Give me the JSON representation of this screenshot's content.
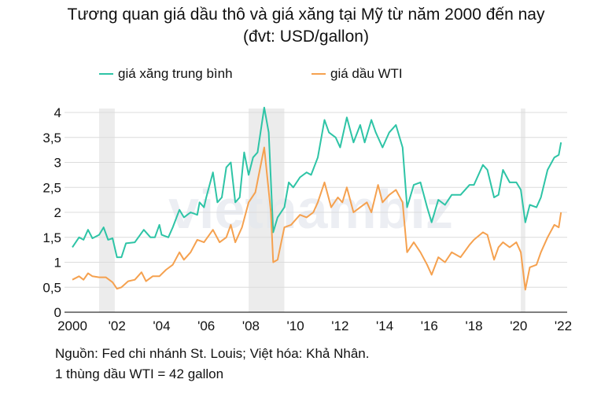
{
  "chart_data": {
    "type": "line",
    "title": "Tương quan giá dầu thô và giá xăng tại Mỹ từ năm 2000 đến nay",
    "subtitle": "(đvt: USD/gallon)",
    "xlabel": "",
    "ylabel": "",
    "xlim": [
      2000,
      2022
    ],
    "ylim": [
      0,
      4
    ],
    "grid": true,
    "legend_position": "top",
    "x_ticks": [
      {
        "v": 2000,
        "label": "2000"
      },
      {
        "v": 2002,
        "label": "'02"
      },
      {
        "v": 2004,
        "label": "'04"
      },
      {
        "v": 2006,
        "label": "'06"
      },
      {
        "v": 2008,
        "label": "'08"
      },
      {
        "v": 2010,
        "label": "'10"
      },
      {
        "v": 2012,
        "label": "'12"
      },
      {
        "v": 2014,
        "label": "'14"
      },
      {
        "v": 2016,
        "label": "'16"
      },
      {
        "v": 2018,
        "label": "'18"
      },
      {
        "v": 2020,
        "label": "'20"
      },
      {
        "v": 2022,
        "label": "'22"
      }
    ],
    "y_ticks": [
      {
        "v": 0,
        "label": "0"
      },
      {
        "v": 0.5,
        "label": "0,5"
      },
      {
        "v": 1,
        "label": "1"
      },
      {
        "v": 1.5,
        "label": "1,5"
      },
      {
        "v": 2,
        "label": "2"
      },
      {
        "v": 2.5,
        "label": "2,5"
      },
      {
        "v": 3,
        "label": "3"
      },
      {
        "v": 3.5,
        "label": "3,5"
      },
      {
        "v": 4,
        "label": "4"
      }
    ],
    "shaded_periods": [
      [
        2001.2,
        2001.9
      ],
      [
        2007.9,
        2009.5
      ],
      [
        2020.1,
        2020.3
      ]
    ],
    "series": [
      {
        "name": "giá xăng trung bình",
        "color": "#2ec4a6",
        "x": [
          2000.0,
          2000.3,
          2000.5,
          2000.7,
          2000.9,
          2001.2,
          2001.4,
          2001.6,
          2001.8,
          2002.0,
          2002.2,
          2002.4,
          2002.8,
          2003.2,
          2003.5,
          2003.7,
          2003.9,
          2004.0,
          2004.3,
          2004.5,
          2004.8,
          2005.0,
          2005.3,
          2005.6,
          2005.7,
          2005.9,
          2006.0,
          2006.3,
          2006.5,
          2006.7,
          2006.9,
          2007.1,
          2007.3,
          2007.5,
          2007.7,
          2007.9,
          2008.1,
          2008.3,
          2008.6,
          2008.8,
          2009.0,
          2009.2,
          2009.5,
          2009.7,
          2009.9,
          2010.2,
          2010.5,
          2010.7,
          2011.0,
          2011.3,
          2011.5,
          2011.8,
          2012.0,
          2012.3,
          2012.6,
          2012.9,
          2013.1,
          2013.4,
          2013.6,
          2013.9,
          2014.2,
          2014.5,
          2014.8,
          2015.0,
          2015.3,
          2015.6,
          2015.9,
          2016.1,
          2016.4,
          2016.7,
          2017.0,
          2017.4,
          2017.8,
          2018.0,
          2018.4,
          2018.6,
          2018.9,
          2019.1,
          2019.3,
          2019.6,
          2019.9,
          2020.1,
          2020.3,
          2020.5,
          2020.8,
          2021.0,
          2021.3,
          2021.6,
          2021.8,
          2021.9
        ],
        "y": [
          1.3,
          1.5,
          1.45,
          1.65,
          1.48,
          1.55,
          1.7,
          1.45,
          1.48,
          1.1,
          1.1,
          1.38,
          1.4,
          1.65,
          1.5,
          1.5,
          1.75,
          1.55,
          1.5,
          1.7,
          2.05,
          1.9,
          2.0,
          1.95,
          2.2,
          2.1,
          2.3,
          2.8,
          2.2,
          2.3,
          2.9,
          3.0,
          2.2,
          2.3,
          3.2,
          2.75,
          3.1,
          3.2,
          4.1,
          3.6,
          1.6,
          1.9,
          2.1,
          2.6,
          2.5,
          2.7,
          2.8,
          2.75,
          3.1,
          3.85,
          3.6,
          3.5,
          3.3,
          3.9,
          3.4,
          3.75,
          3.4,
          3.85,
          3.6,
          3.3,
          3.6,
          3.75,
          3.3,
          2.1,
          2.55,
          2.6,
          2.1,
          1.8,
          2.25,
          2.15,
          2.35,
          2.35,
          2.55,
          2.55,
          2.95,
          2.85,
          2.3,
          2.35,
          2.85,
          2.6,
          2.6,
          2.45,
          1.8,
          2.15,
          2.1,
          2.3,
          2.85,
          3.1,
          3.15,
          3.4
        ]
      },
      {
        "name": "giá dầu WTI",
        "color": "#f5a14f",
        "x": [
          2000.0,
          2000.3,
          2000.5,
          2000.7,
          2000.9,
          2001.2,
          2001.5,
          2001.8,
          2002.0,
          2002.2,
          2002.5,
          2002.8,
          2003.1,
          2003.3,
          2003.6,
          2003.9,
          2004.2,
          2004.5,
          2004.8,
          2005.0,
          2005.3,
          2005.6,
          2005.9,
          2006.3,
          2006.6,
          2006.9,
          2007.1,
          2007.3,
          2007.6,
          2007.9,
          2008.2,
          2008.6,
          2008.9,
          2009.0,
          2009.2,
          2009.5,
          2009.8,
          2010.2,
          2010.5,
          2010.8,
          2011.0,
          2011.3,
          2011.6,
          2011.9,
          2012.1,
          2012.3,
          2012.6,
          2012.9,
          2013.2,
          2013.4,
          2013.7,
          2013.9,
          2014.2,
          2014.5,
          2014.8,
          2015.0,
          2015.3,
          2015.6,
          2015.9,
          2016.1,
          2016.4,
          2016.7,
          2017.0,
          2017.4,
          2017.8,
          2018.0,
          2018.4,
          2018.6,
          2018.9,
          2019.1,
          2019.3,
          2019.6,
          2019.9,
          2020.1,
          2020.3,
          2020.5,
          2020.8,
          2021.0,
          2021.3,
          2021.6,
          2021.8,
          2021.9
        ],
        "y": [
          0.65,
          0.72,
          0.65,
          0.78,
          0.72,
          0.7,
          0.7,
          0.6,
          0.47,
          0.5,
          0.62,
          0.65,
          0.8,
          0.62,
          0.72,
          0.72,
          0.85,
          0.95,
          1.2,
          1.05,
          1.2,
          1.45,
          1.4,
          1.65,
          1.4,
          1.5,
          1.75,
          1.4,
          1.7,
          2.2,
          2.4,
          3.3,
          2.0,
          1.0,
          1.05,
          1.7,
          1.75,
          1.95,
          1.9,
          2.0,
          2.2,
          2.6,
          2.1,
          2.3,
          2.2,
          2.5,
          2.0,
          2.1,
          2.2,
          2.0,
          2.55,
          2.2,
          2.35,
          2.45,
          2.2,
          1.2,
          1.4,
          1.2,
          0.95,
          0.75,
          1.1,
          1.0,
          1.2,
          1.1,
          1.35,
          1.45,
          1.6,
          1.55,
          1.05,
          1.3,
          1.4,
          1.3,
          1.4,
          1.2,
          0.45,
          0.9,
          0.95,
          1.2,
          1.5,
          1.75,
          1.7,
          2.0
        ]
      }
    ]
  },
  "notes": {
    "source": "Nguồn: Fed chi nhánh St. Louis; Việt hóa: Khả Nhân.",
    "conversion": "1 thùng dầu WTI = 42 gallon"
  },
  "watermark": "vietnambiz"
}
